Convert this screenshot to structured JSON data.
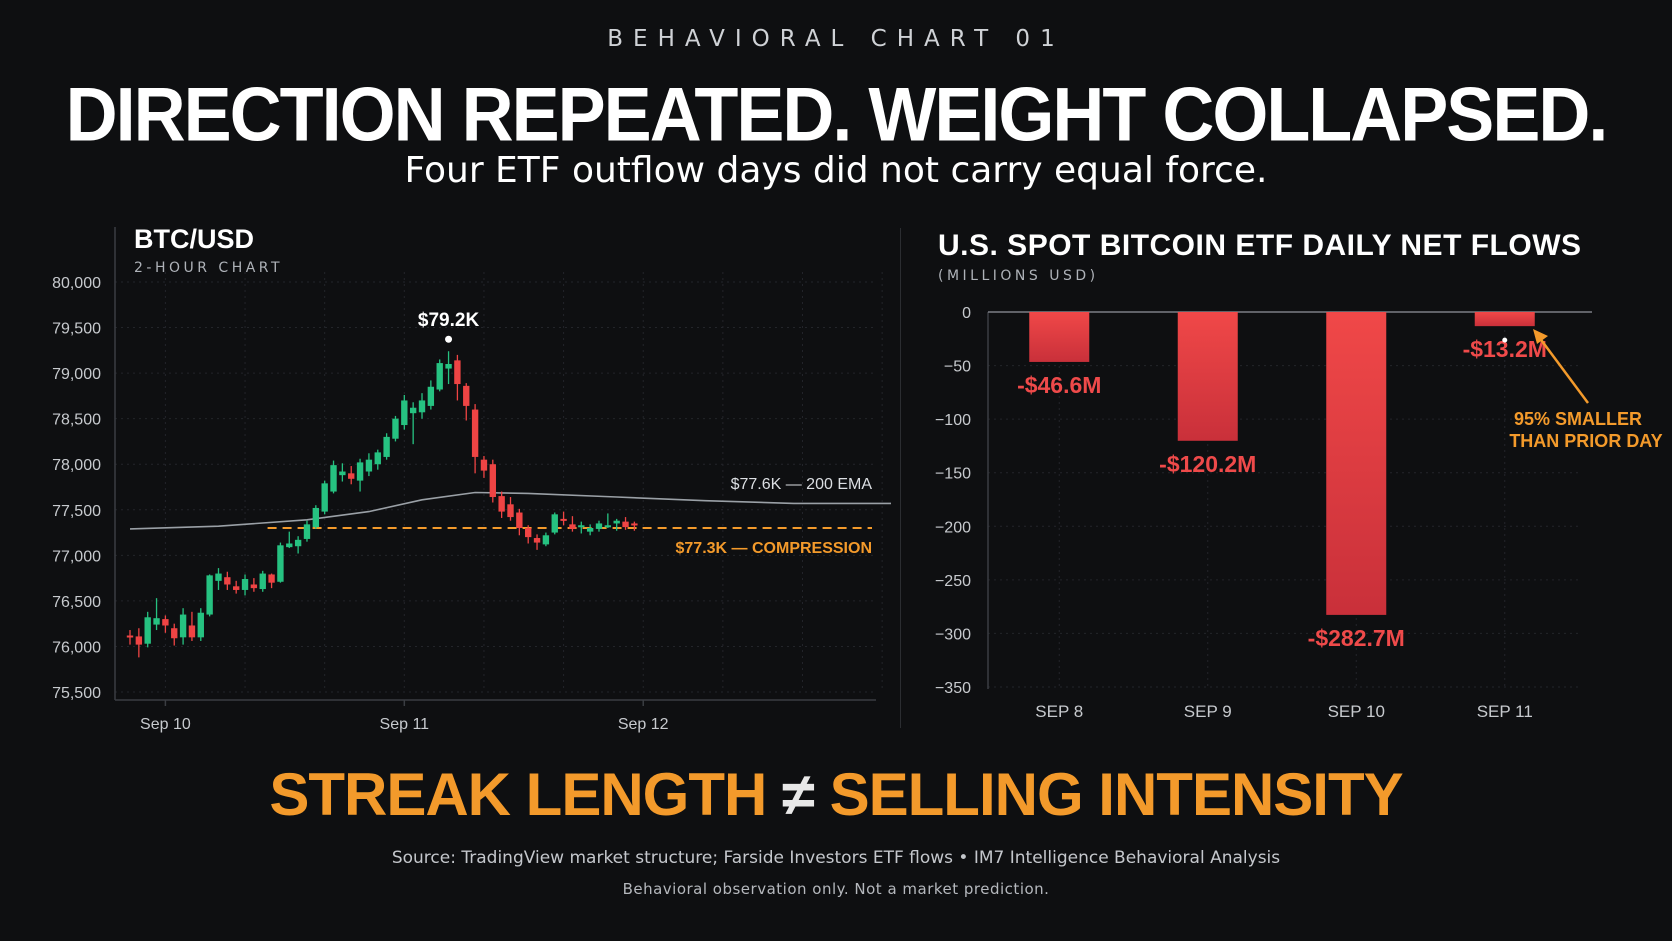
{
  "header": {
    "kicker": "BEHAVIORAL CHART 01",
    "headline": "DIRECTION REPEATED. WEIGHT COLLAPSED.",
    "subhead": "Four ETF outflow days did not carry equal force."
  },
  "colors": {
    "background": "#0e0f11",
    "up": "#26c281",
    "down": "#ef4444",
    "accent": "#f39a2b",
    "ema": "#9aa0a6"
  },
  "chart_data": [
    {
      "type": "candlestick",
      "title": "BTC/USD",
      "subtitle": "2-HOUR CHART",
      "ylim": [
        75500,
        80000
      ],
      "yticks": [
        75500,
        76000,
        76500,
        77000,
        77500,
        78000,
        78500,
        79000,
        79500,
        80000
      ],
      "ytick_labels": [
        "75,500",
        "76,000",
        "76,500",
        "77,000",
        "77,500",
        "78,000",
        "78,500",
        "79,000",
        "79,500",
        "80,000"
      ],
      "xticks": [
        {
          "label": "Sep 10",
          "index": 4
        },
        {
          "label": "Sep 11",
          "index": 31
        },
        {
          "label": "Sep 12",
          "index": 58
        }
      ],
      "xlim": [
        0,
        86
      ],
      "candles": [
        {
          "o": 76120,
          "h": 76180,
          "l": 76020,
          "c": 76100
        },
        {
          "o": 76110,
          "h": 76200,
          "l": 75880,
          "c": 76020
        },
        {
          "o": 76030,
          "h": 76380,
          "l": 75990,
          "c": 76320
        },
        {
          "o": 76240,
          "h": 76530,
          "l": 76180,
          "c": 76310
        },
        {
          "o": 76300,
          "h": 76340,
          "l": 76150,
          "c": 76230
        },
        {
          "o": 76200,
          "h": 76250,
          "l": 76010,
          "c": 76090
        },
        {
          "o": 76100,
          "h": 76420,
          "l": 76020,
          "c": 76350
        },
        {
          "o": 76230,
          "h": 76380,
          "l": 76060,
          "c": 76100
        },
        {
          "o": 76100,
          "h": 76420,
          "l": 76060,
          "c": 76370
        },
        {
          "o": 76350,
          "h": 76790,
          "l": 76330,
          "c": 76780
        },
        {
          "o": 76720,
          "h": 76860,
          "l": 76620,
          "c": 76800
        },
        {
          "o": 76760,
          "h": 76820,
          "l": 76620,
          "c": 76680
        },
        {
          "o": 76660,
          "h": 76720,
          "l": 76580,
          "c": 76620
        },
        {
          "o": 76620,
          "h": 76790,
          "l": 76560,
          "c": 76740
        },
        {
          "o": 76680,
          "h": 76750,
          "l": 76600,
          "c": 76640
        },
        {
          "o": 76630,
          "h": 76830,
          "l": 76600,
          "c": 76800
        },
        {
          "o": 76790,
          "h": 76800,
          "l": 76640,
          "c": 76700
        },
        {
          "o": 76710,
          "h": 77140,
          "l": 76700,
          "c": 77110
        },
        {
          "o": 77090,
          "h": 77260,
          "l": 77080,
          "c": 77130
        },
        {
          "o": 77100,
          "h": 77210,
          "l": 77020,
          "c": 77170
        },
        {
          "o": 77180,
          "h": 77380,
          "l": 77150,
          "c": 77340
        },
        {
          "o": 77310,
          "h": 77550,
          "l": 77290,
          "c": 77520
        },
        {
          "o": 77480,
          "h": 77820,
          "l": 77450,
          "c": 77790
        },
        {
          "o": 77700,
          "h": 78040,
          "l": 77680,
          "c": 77990
        },
        {
          "o": 77880,
          "h": 78010,
          "l": 77810,
          "c": 77920
        },
        {
          "o": 77900,
          "h": 77980,
          "l": 77780,
          "c": 77840
        },
        {
          "o": 77820,
          "h": 78060,
          "l": 77700,
          "c": 78020
        },
        {
          "o": 77920,
          "h": 78120,
          "l": 77870,
          "c": 78050
        },
        {
          "o": 78000,
          "h": 78160,
          "l": 77940,
          "c": 78130
        },
        {
          "o": 78080,
          "h": 78340,
          "l": 78050,
          "c": 78300
        },
        {
          "o": 78280,
          "h": 78530,
          "l": 78250,
          "c": 78500
        },
        {
          "o": 78430,
          "h": 78760,
          "l": 78380,
          "c": 78700
        },
        {
          "o": 78560,
          "h": 78680,
          "l": 78220,
          "c": 78620
        },
        {
          "o": 78570,
          "h": 78780,
          "l": 78500,
          "c": 78700
        },
        {
          "o": 78640,
          "h": 78920,
          "l": 78600,
          "c": 78850
        },
        {
          "o": 78820,
          "h": 79150,
          "l": 78800,
          "c": 79110
        },
        {
          "o": 79050,
          "h": 79240,
          "l": 78880,
          "c": 79100
        },
        {
          "o": 79140,
          "h": 79200,
          "l": 78700,
          "c": 78880
        },
        {
          "o": 78860,
          "h": 78890,
          "l": 78480,
          "c": 78640
        },
        {
          "o": 78600,
          "h": 78660,
          "l": 77900,
          "c": 78080
        },
        {
          "o": 78050,
          "h": 78090,
          "l": 77850,
          "c": 77930
        },
        {
          "o": 78000,
          "h": 78050,
          "l": 77580,
          "c": 77640
        },
        {
          "o": 77650,
          "h": 77700,
          "l": 77410,
          "c": 77480
        },
        {
          "o": 77560,
          "h": 77640,
          "l": 77380,
          "c": 77420
        },
        {
          "o": 77470,
          "h": 77510,
          "l": 77220,
          "c": 77300
        },
        {
          "o": 77300,
          "h": 77330,
          "l": 77130,
          "c": 77200
        },
        {
          "o": 77190,
          "h": 77230,
          "l": 77060,
          "c": 77140
        },
        {
          "o": 77120,
          "h": 77250,
          "l": 77100,
          "c": 77220
        },
        {
          "o": 77250,
          "h": 77470,
          "l": 77230,
          "c": 77450
        },
        {
          "o": 77400,
          "h": 77480,
          "l": 77330,
          "c": 77380
        },
        {
          "o": 77340,
          "h": 77430,
          "l": 77260,
          "c": 77290
        },
        {
          "o": 77310,
          "h": 77370,
          "l": 77240,
          "c": 77330
        },
        {
          "o": 77260,
          "h": 77340,
          "l": 77220,
          "c": 77300
        },
        {
          "o": 77290,
          "h": 77380,
          "l": 77260,
          "c": 77350
        },
        {
          "o": 77320,
          "h": 77460,
          "l": 77300,
          "c": 77330
        },
        {
          "o": 77350,
          "h": 77400,
          "l": 77270,
          "c": 77380
        },
        {
          "o": 77370,
          "h": 77420,
          "l": 77280,
          "c": 77310
        },
        {
          "o": 77350,
          "h": 77370,
          "l": 77270,
          "c": 77330
        }
      ],
      "ema": {
        "label": "$77.6K — 200 EMA",
        "points": [
          [
            0,
            77290
          ],
          [
            10,
            77320
          ],
          [
            20,
            77390
          ],
          [
            27,
            77480
          ],
          [
            33,
            77610
          ],
          [
            39,
            77690
          ],
          [
            45,
            77680
          ],
          [
            55,
            77640
          ],
          [
            65,
            77600
          ],
          [
            75,
            77570
          ],
          [
            86,
            77570
          ]
        ]
      },
      "compression": {
        "label": "$77.3K — COMPRESSION",
        "value": 77300,
        "from_index": 16
      },
      "peak": {
        "label": "$79.2K",
        "index": 36,
        "value": 79240
      }
    },
    {
      "type": "bar",
      "title": "U.S. SPOT BITCOIN ETF DAILY NET FLOWS",
      "subtitle": "(MILLIONS USD)",
      "categories": [
        "SEP 8",
        "SEP 9",
        "SEP 10",
        "SEP 11"
      ],
      "values": [
        -46.6,
        -120.2,
        -282.7,
        -13.2
      ],
      "value_labels": [
        "-$46.6M",
        "-$120.2M",
        "-$282.7M",
        "-$13.2M"
      ],
      "ylim": [
        -350,
        0
      ],
      "yticks": [
        0,
        -50,
        -100,
        -150,
        -200,
        -250,
        -300,
        -350
      ],
      "ytick_labels": [
        "0",
        "−50",
        "−100",
        "−150",
        "−200",
        "−250",
        "−300",
        "−350"
      ],
      "annotation": {
        "line1": "95% SMALLER",
        "line2": "THAN PRIOR DAY",
        "target": "SEP 11"
      }
    }
  ],
  "footer": {
    "tagline_left": "STREAK LENGTH",
    "tagline_symbol": "≠",
    "tagline_right": "SELLING INTENSITY",
    "source": "Source: TradingView market structure; Farside Investors ETF flows • IM7 Intelligence Behavioral Analysis",
    "disclaimer": "Behavioral observation only. Not a market prediction."
  }
}
